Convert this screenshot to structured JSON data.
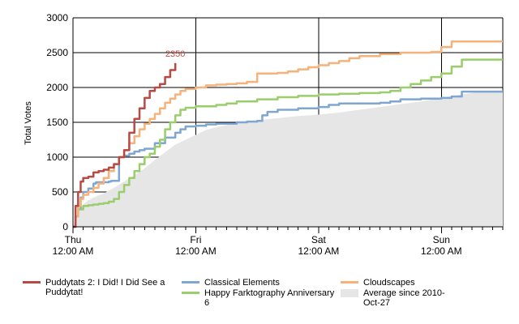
{
  "chart_data": {
    "type": "line",
    "title": "",
    "ylabel": "Total Votes",
    "xlabel": "",
    "ylim": [
      0,
      3000
    ],
    "xlim_hours": [
      0,
      84
    ],
    "y_ticks": [
      0,
      500,
      1000,
      1500,
      2000,
      2500,
      3000
    ],
    "x_ticks": [
      {
        "hours": 0,
        "day": "Thu",
        "time": "12:00 AM"
      },
      {
        "hours": 24,
        "day": "Fri",
        "time": "12:00 AM"
      },
      {
        "hours": 48,
        "day": "Sat",
        "time": "12:00 AM"
      },
      {
        "hours": 72,
        "day": "Sun",
        "time": "12:00 AM"
      }
    ],
    "grid": true,
    "annotation": {
      "text": "2350",
      "series": "Puddytats 2: I Did! I Did See a Puddytat!"
    },
    "series": [
      {
        "name": "Average since 2010-Oct-27",
        "kind": "area",
        "color": "#e6e6e6",
        "x": [
          0,
          1,
          2,
          3,
          4,
          6,
          8,
          10,
          12,
          14,
          16,
          18,
          20,
          22,
          24,
          26,
          28,
          30,
          32,
          34,
          36,
          40,
          44,
          48,
          52,
          56,
          60,
          64,
          68,
          72,
          76,
          80,
          84
        ],
        "y": [
          0,
          200,
          320,
          380,
          420,
          480,
          560,
          650,
          740,
          840,
          960,
          1070,
          1180,
          1250,
          1320,
          1390,
          1430,
          1460,
          1490,
          1510,
          1530,
          1560,
          1590,
          1610,
          1640,
          1680,
          1720,
          1760,
          1800,
          1850,
          1900,
          1940,
          1960
        ]
      },
      {
        "name": "Classical Elements",
        "color": "#7ea6d0",
        "x": [
          0,
          0.5,
          1,
          1.5,
          2,
          3,
          4,
          4.5,
          7,
          7.5,
          9,
          10,
          11,
          12,
          13,
          14,
          16,
          18,
          20,
          21,
          22,
          24,
          26,
          28,
          32,
          34,
          36,
          37,
          38,
          40,
          44,
          48,
          50,
          52,
          60,
          62,
          64,
          68,
          72,
          74,
          76,
          84
        ],
        "y": [
          0,
          150,
          250,
          420,
          500,
          550,
          620,
          640,
          650,
          660,
          1000,
          1020,
          1050,
          1080,
          1100,
          1120,
          1200,
          1280,
          1350,
          1400,
          1440,
          1450,
          1470,
          1480,
          1500,
          1510,
          1520,
          1600,
          1650,
          1680,
          1700,
          1720,
          1750,
          1770,
          1780,
          1800,
          1830,
          1840,
          1850,
          1870,
          1940,
          1940
        ]
      },
      {
        "name": "Happy Farktography Anniversary 6",
        "color": "#9acd6b",
        "x": [
          0,
          0.5,
          1,
          2,
          3,
          4,
          5,
          6,
          7,
          8,
          9,
          10,
          11,
          12,
          13,
          14,
          15,
          16,
          17,
          18,
          19,
          20,
          21,
          22,
          24,
          28,
          30,
          32,
          36,
          40,
          44,
          48,
          52,
          56,
          60,
          62,
          64,
          66,
          68,
          70,
          72,
          74,
          76,
          84
        ],
        "y": [
          0,
          150,
          250,
          300,
          310,
          320,
          330,
          340,
          360,
          400,
          500,
          600,
          700,
          800,
          900,
          1000,
          1050,
          1150,
          1250,
          1400,
          1500,
          1600,
          1680,
          1710,
          1730,
          1750,
          1770,
          1800,
          1830,
          1860,
          1880,
          1900,
          1910,
          1920,
          1930,
          1950,
          2000,
          2050,
          2100,
          2150,
          2200,
          2300,
          2400,
          2400
        ]
      },
      {
        "name": "Cloudscapes",
        "color": "#f5b27a",
        "x": [
          0,
          0.5,
          1,
          1.5,
          2,
          3,
          4,
          5,
          6,
          7,
          8,
          9,
          10,
          11,
          12,
          13,
          14,
          15,
          16,
          17,
          18,
          19,
          20,
          21,
          22,
          24,
          26,
          28,
          30,
          32,
          34,
          36,
          38,
          40,
          42,
          44,
          46,
          48,
          50,
          52,
          54,
          56,
          60,
          64,
          68,
          70,
          72,
          74,
          84
        ],
        "y": [
          0,
          150,
          300,
          400,
          460,
          500,
          560,
          620,
          700,
          800,
          900,
          1000,
          1100,
          1200,
          1300,
          1400,
          1480,
          1550,
          1620,
          1700,
          1780,
          1840,
          1900,
          1950,
          1980,
          2000,
          2030,
          2040,
          2050,
          2060,
          2080,
          2200,
          2200,
          2210,
          2230,
          2260,
          2290,
          2320,
          2350,
          2380,
          2420,
          2450,
          2480,
          2500,
          2500,
          2510,
          2580,
          2660,
          2660
        ]
      },
      {
        "name": "Puddytats 2: I Did! I Did See a Puddytat!",
        "color": "#b84a45",
        "x": [
          0,
          0.5,
          1,
          1.5,
          2,
          3,
          4,
          5,
          6,
          7,
          8,
          9,
          10,
          11,
          12,
          13,
          14,
          15,
          16,
          17,
          18,
          19,
          20
        ],
        "y": [
          0,
          300,
          500,
          650,
          700,
          720,
          780,
          800,
          820,
          850,
          900,
          1000,
          1100,
          1350,
          1550,
          1700,
          1850,
          1950,
          2000,
          2050,
          2150,
          2250,
          2350
        ]
      }
    ]
  },
  "legend": {
    "items": [
      {
        "label": "Puddytats 2: I Did! I Did See a Puddytat!",
        "color": "#b84a45",
        "kind": "line"
      },
      {
        "label": "Classical Elements",
        "color": "#7ea6d0",
        "kind": "line"
      },
      {
        "label": "Cloudscapes",
        "color": "#f5b27a",
        "kind": "line"
      },
      {
        "label": "Happy Farktography Anniversary 6",
        "color": "#9acd6b",
        "kind": "line"
      },
      {
        "label": "Average since 2010-Oct-27",
        "color": "#e6e6e6",
        "kind": "area"
      }
    ]
  }
}
